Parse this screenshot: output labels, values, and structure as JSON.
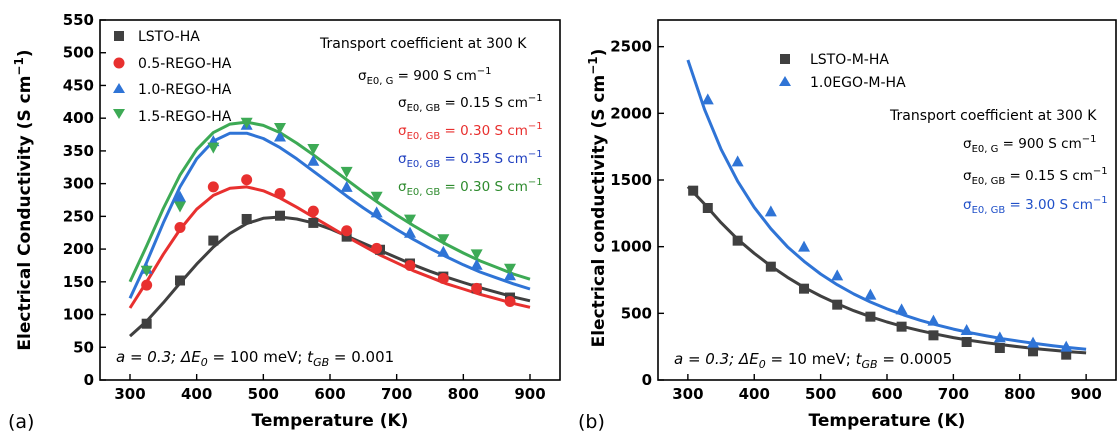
{
  "colors": {
    "LSTO": "#404040",
    "REGO05": "#e8302f",
    "REGO10": "#2f74d6",
    "REGO15": "#3daa55",
    "dark_text": "#000000",
    "red_text": "#e8302f",
    "blue_text": "#1f3fbf",
    "green_text": "#2e8b2e",
    "blue_b": "#2f74d6",
    "blue_b_text": "#2050c8"
  },
  "chart_data": [
    {
      "type": "scatter",
      "panel_label": "(a)",
      "xlabel": "Temperature (K)",
      "ylabel_main": "Electrical Conductivity (S cm",
      "ylabel_sup": "−1",
      "ylabel_end": ")",
      "xlim": [
        255,
        945
      ],
      "ylim": [
        0,
        550
      ],
      "xticks": [
        300,
        400,
        500,
        600,
        700,
        800,
        900
      ],
      "yticks": [
        0,
        50,
        100,
        150,
        200,
        250,
        300,
        350,
        400,
        450,
        500,
        550
      ],
      "legend_position": "top-left",
      "annotation_title": "Transport coefficient at 300 K",
      "annotations": [
        {
          "prefix": "σ",
          "sub": "E0, G",
          "value": " = 900 S cm",
          "sup": "−1",
          "color": "dark"
        },
        {
          "prefix": "σ",
          "sub": "E0, GB",
          "value": " = 0.15 S cm",
          "sup": "−1",
          "color": "dark"
        },
        {
          "prefix": "σ",
          "sub": "E0, GB",
          "value": " = 0.30 S cm",
          "sup": "−1",
          "color": "red"
        },
        {
          "prefix": "σ",
          "sub": "E0, GB",
          "value": " = 0.35 S cm",
          "sup": "−1",
          "color": "blue"
        },
        {
          "prefix": "σ",
          "sub": "E0, GB",
          "value": " = 0.30 S cm",
          "sup": "−1",
          "color": "green"
        }
      ],
      "footnote": {
        "a": "a = 0.3; ",
        "dE": "ΔE",
        "dE_sub": "0",
        "dE_val": " = 100 meV; ",
        "t": "t",
        "t_sub": "GB",
        "t_val": " = 0.001"
      },
      "series": [
        {
          "name": "LSTO-HA",
          "marker": "square",
          "color_key": "LSTO",
          "points": [
            [
              325,
              86
            ],
            [
              375,
              152
            ],
            [
              425,
              213
            ],
            [
              475,
              246
            ],
            [
              525,
              251
            ],
            [
              575,
              240
            ],
            [
              625,
              219
            ],
            [
              675,
              199
            ],
            [
              720,
              178
            ],
            [
              770,
              158
            ],
            [
              820,
              140
            ],
            [
              870,
              126
            ]
          ],
          "fit": [
            [
              300,
              67
            ],
            [
              325,
              90
            ],
            [
              350,
              118
            ],
            [
              375,
              148
            ],
            [
              400,
              177
            ],
            [
              425,
              203
            ],
            [
              450,
              224
            ],
            [
              475,
              239
            ],
            [
              500,
              247
            ],
            [
              525,
              249
            ],
            [
              550,
              246
            ],
            [
              575,
              240
            ],
            [
              600,
              231
            ],
            [
              625,
              220
            ],
            [
              650,
              209
            ],
            [
              675,
              198
            ],
            [
              700,
              187
            ],
            [
              725,
              176
            ],
            [
              750,
              166
            ],
            [
              775,
              157
            ],
            [
              800,
              149
            ],
            [
              825,
              141
            ],
            [
              850,
              134
            ],
            [
              875,
              127
            ],
            [
              900,
              121
            ]
          ]
        },
        {
          "name": "0.5-REGO-HA",
          "marker": "circle",
          "color_key": "REGO05",
          "points": [
            [
              325,
              145
            ],
            [
              375,
              233
            ],
            [
              425,
              295
            ],
            [
              475,
              306
            ],
            [
              525,
              285
            ],
            [
              575,
              258
            ],
            [
              625,
              228
            ],
            [
              670,
              201
            ],
            [
              720,
              175
            ],
            [
              770,
              155
            ],
            [
              820,
              140
            ],
            [
              870,
              120
            ]
          ],
          "fit": [
            [
              300,
              110
            ],
            [
              325,
              150
            ],
            [
              350,
              192
            ],
            [
              375,
              230
            ],
            [
              400,
              261
            ],
            [
              425,
              282
            ],
            [
              450,
              293
            ],
            [
              475,
              295
            ],
            [
              500,
              289
            ],
            [
              525,
              278
            ],
            [
              550,
              264
            ],
            [
              575,
              249
            ],
            [
              600,
              234
            ],
            [
              625,
              219
            ],
            [
              650,
              205
            ],
            [
              675,
              191
            ],
            [
              700,
              179
            ],
            [
              725,
              167
            ],
            [
              750,
              157
            ],
            [
              775,
              147
            ],
            [
              800,
              139
            ],
            [
              825,
              131
            ],
            [
              850,
              124
            ],
            [
              875,
              117
            ],
            [
              900,
              111
            ]
          ]
        },
        {
          "name": "1.0-REGO-HA",
          "marker": "triangle-up",
          "color_key": "REGO10",
          "points": [
            [
              325,
              170
            ],
            [
              375,
              280
            ],
            [
              425,
              365
            ],
            [
              475,
              390
            ],
            [
              525,
              372
            ],
            [
              575,
              335
            ],
            [
              625,
              295
            ],
            [
              670,
              256
            ],
            [
              720,
              225
            ],
            [
              770,
              196
            ],
            [
              820,
              176
            ],
            [
              870,
              160
            ]
          ],
          "fit": [
            [
              300,
              125
            ],
            [
              325,
              180
            ],
            [
              350,
              240
            ],
            [
              375,
              295
            ],
            [
              400,
              338
            ],
            [
              425,
              365
            ],
            [
              450,
              377
            ],
            [
              475,
              377
            ],
            [
              500,
              369
            ],
            [
              525,
              355
            ],
            [
              550,
              338
            ],
            [
              575,
              319
            ],
            [
              600,
              300
            ],
            [
              625,
              281
            ],
            [
              650,
              263
            ],
            [
              675,
              246
            ],
            [
              700,
              230
            ],
            [
              725,
              215
            ],
            [
              750,
              201
            ],
            [
              775,
              188
            ],
            [
              800,
              176
            ],
            [
              825,
              165
            ],
            [
              850,
              156
            ],
            [
              875,
              147
            ],
            [
              900,
              139
            ]
          ]
        },
        {
          "name": "1.5-REGO-HA",
          "marker": "triangle-down",
          "color_key": "REGO15",
          "points": [
            [
              325,
              167
            ],
            [
              375,
              265
            ],
            [
              425,
              355
            ],
            [
              475,
              393
            ],
            [
              525,
              385
            ],
            [
              575,
              353
            ],
            [
              625,
              318
            ],
            [
              670,
              280
            ],
            [
              720,
              245
            ],
            [
              770,
              215
            ],
            [
              820,
              192
            ],
            [
              870,
              170
            ]
          ],
          "fit": [
            [
              300,
              150
            ],
            [
              325,
              205
            ],
            [
              350,
              262
            ],
            [
              375,
              313
            ],
            [
              400,
              352
            ],
            [
              425,
              378
            ],
            [
              450,
              391
            ],
            [
              475,
              394
            ],
            [
              500,
              389
            ],
            [
              525,
              378
            ],
            [
              550,
              362
            ],
            [
              575,
              344
            ],
            [
              600,
              325
            ],
            [
              625,
              306
            ],
            [
              650,
              287
            ],
            [
              675,
              269
            ],
            [
              700,
              252
            ],
            [
              725,
              236
            ],
            [
              750,
              221
            ],
            [
              775,
              207
            ],
            [
              800,
              194
            ],
            [
              825,
              182
            ],
            [
              850,
              172
            ],
            [
              875,
              162
            ],
            [
              900,
              154
            ]
          ]
        }
      ]
    },
    {
      "type": "scatter",
      "panel_label": "(b)",
      "xlabel": "Temperature (K)",
      "ylabel_main": "Electrical conductivity (S cm",
      "ylabel_sup": "−1",
      "ylabel_end": ")",
      "xlim": [
        255,
        945
      ],
      "ylim": [
        0,
        2700
      ],
      "xticks": [
        300,
        400,
        500,
        600,
        700,
        800,
        900
      ],
      "yticks": [
        0,
        500,
        1000,
        1500,
        2000,
        2500
      ],
      "legend_position": "top-left",
      "annotation_title": "Transport coefficient at 300 K",
      "annotations": [
        {
          "prefix": "σ",
          "sub": "E0, G",
          "value": " = 900 S cm",
          "sup": "−1",
          "color": "dark"
        },
        {
          "prefix": "σ",
          "sub": "E0, GB",
          "value": " = 0.15 S cm",
          "sup": "−1",
          "color": "dark"
        },
        {
          "prefix": "σ",
          "sub": "E0, GB",
          "value": " = 3.00 S cm",
          "sup": "−1",
          "color": "blue_b"
        }
      ],
      "footnote": {
        "a": "a = 0.3; ",
        "dE": "ΔE",
        "dE_sub": "0",
        "dE_val": " = 10 meV; ",
        "t": "t",
        "t_sub": "GB",
        "t_val": " = 0.0005"
      },
      "series": [
        {
          "name": "LSTO-M-HA",
          "marker": "square",
          "color_key": "LSTO",
          "points": [
            [
              308,
              1420
            ],
            [
              330,
              1290
            ],
            [
              375,
              1045
            ],
            [
              425,
              850
            ],
            [
              475,
              685
            ],
            [
              525,
              565
            ],
            [
              575,
              475
            ],
            [
              622,
              400
            ],
            [
              670,
              335
            ],
            [
              720,
              285
            ],
            [
              770,
              240
            ],
            [
              820,
              215
            ],
            [
              870,
              190
            ]
          ],
          "fit": [
            [
              300,
              1450
            ],
            [
              325,
              1320
            ],
            [
              350,
              1180
            ],
            [
              375,
              1055
            ],
            [
              400,
              950
            ],
            [
              425,
              855
            ],
            [
              450,
              770
            ],
            [
              475,
              695
            ],
            [
              500,
              630
            ],
            [
              525,
              572
            ],
            [
              550,
              520
            ],
            [
              575,
              475
            ],
            [
              600,
              435
            ],
            [
              625,
              400
            ],
            [
              650,
              370
            ],
            [
              675,
              343
            ],
            [
              700,
              318
            ],
            [
              725,
              297
            ],
            [
              750,
              279
            ],
            [
              775,
              263
            ],
            [
              800,
              248
            ],
            [
              825,
              235
            ],
            [
              850,
              223
            ],
            [
              875,
              212
            ],
            [
              900,
              203
            ]
          ]
        },
        {
          "name": "1.0EGO-M-HA",
          "marker": "triangle-up",
          "color_key": "REGO10",
          "points": [
            [
              330,
              2105
            ],
            [
              375,
              1640
            ],
            [
              425,
              1265
            ],
            [
              475,
              1000
            ],
            [
              525,
              785
            ],
            [
              575,
              640
            ],
            [
              622,
              530
            ],
            [
              670,
              445
            ],
            [
              720,
              375
            ],
            [
              770,
              320
            ],
            [
              820,
              280
            ],
            [
              870,
              250
            ]
          ],
          "fit": [
            [
              300,
              2400
            ],
            [
              325,
              2030
            ],
            [
              350,
              1730
            ],
            [
              375,
              1490
            ],
            [
              400,
              1295
            ],
            [
              425,
              1135
            ],
            [
              450,
              1000
            ],
            [
              475,
              890
            ],
            [
              500,
              795
            ],
            [
              525,
              715
            ],
            [
              550,
              645
            ],
            [
              575,
              585
            ],
            [
              600,
              533
            ],
            [
              625,
              488
            ],
            [
              650,
              448
            ],
            [
              675,
              413
            ],
            [
              700,
              382
            ],
            [
              725,
              355
            ],
            [
              750,
              331
            ],
            [
              775,
              309
            ],
            [
              800,
              290
            ],
            [
              825,
              273
            ],
            [
              850,
              257
            ],
            [
              875,
              243
            ],
            [
              900,
              231
            ]
          ]
        }
      ]
    }
  ]
}
